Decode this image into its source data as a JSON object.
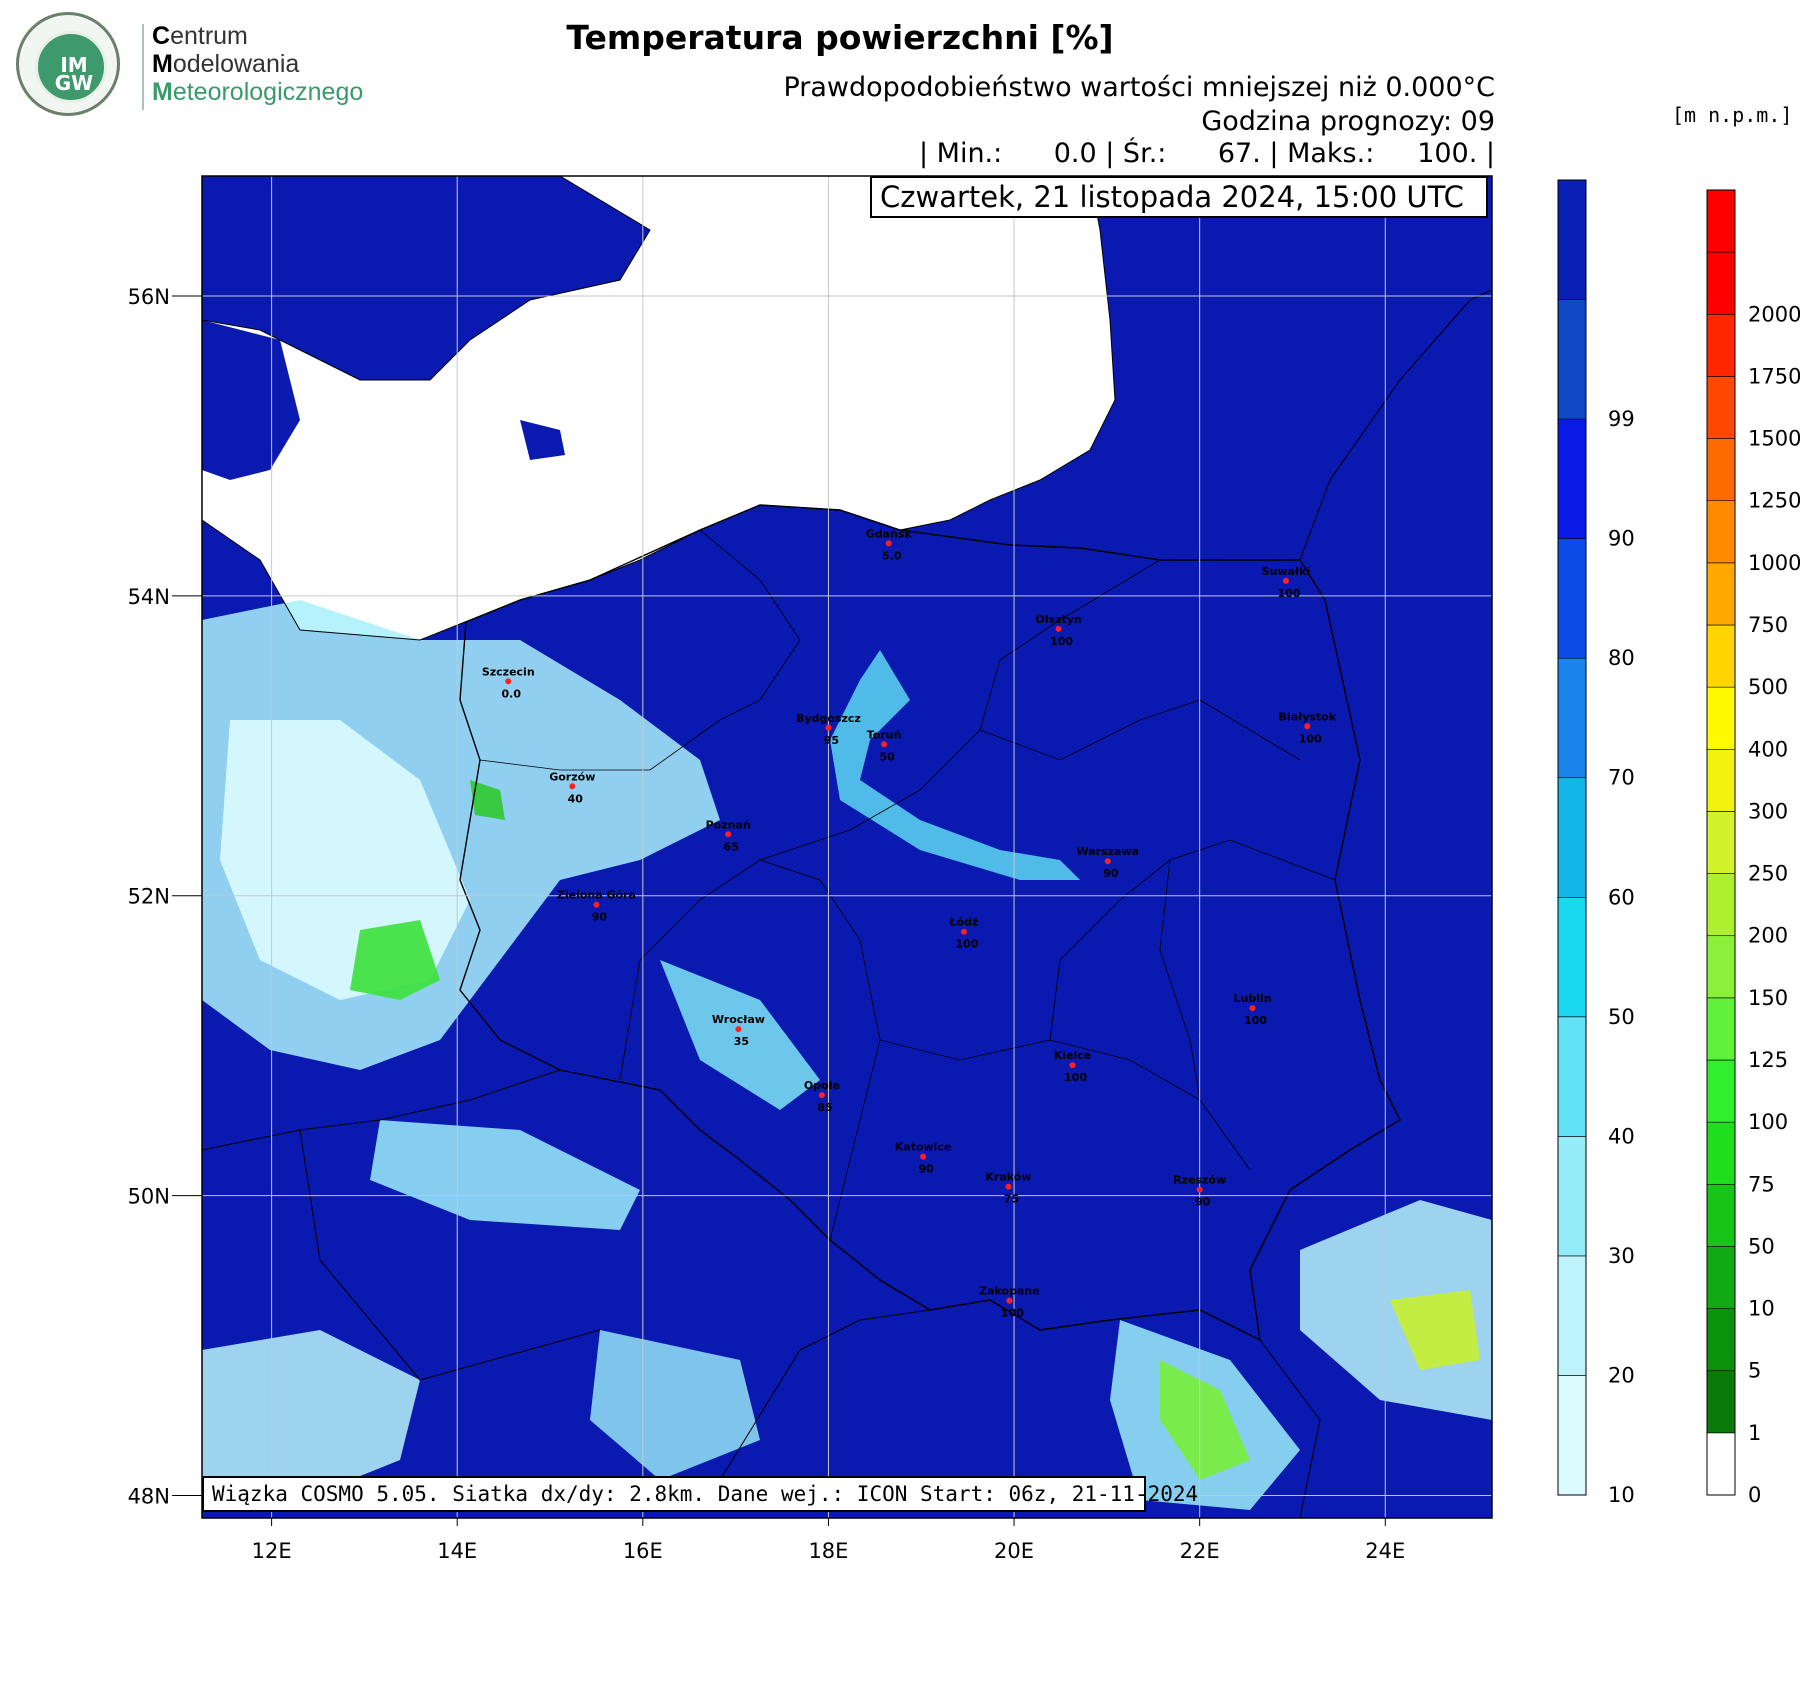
{
  "logo": {
    "badge_text": "IM GW",
    "line1_initial": "C",
    "line1_rest": "entrum",
    "line2_initial": "M",
    "line2_rest": "odelowania",
    "line3_initial": "M",
    "line3_rest": "eteorologicznego"
  },
  "header": {
    "title": "Temperatura powierzchni [%]",
    "subtitle": "Prawdopodobieństwo wartości mniejszej niż 0.000°C",
    "forecast_hour": "Godzina prognozy: 09",
    "stats": "| Min.:      0.0 | Śr.:      67. | Maks.:     100. |"
  },
  "date_box": "Czwartek, 21 listopada 2024, 15:00 UTC",
  "footer": "Wiązka COSMO 5.05. Siatka dx/dy: 2.8km. Dane wej.: ICON Start: 06z, 21-11-2024",
  "elevation_unit": "[m n.p.m.]",
  "axes": {
    "lat_labels": [
      "56N",
      "54N",
      "52N",
      "50N",
      "48N"
    ],
    "lat_values": [
      56,
      54,
      52,
      50,
      48
    ],
    "lon_labels": [
      "12E",
      "14E",
      "16E",
      "18E",
      "20E",
      "22E",
      "24E"
    ],
    "lon_values": [
      12,
      14,
      16,
      18,
      20,
      22,
      24
    ],
    "lon_range": [
      11.25,
      25.15
    ],
    "lat_range": [
      47.85,
      56.8
    ]
  },
  "probability_colorbar": {
    "labels": [
      "10",
      "20",
      "30",
      "40",
      "50",
      "60",
      "70",
      "80",
      "90",
      "99"
    ],
    "colors": [
      "#ddfbff",
      "#bdf4fc",
      "#94ecf9",
      "#62e2f7",
      "#1ad8ef",
      "#14b6ea",
      "#1a84ec",
      "#0e4ce8",
      "#0a1be8",
      "#0f47c5",
      "#0a20b4"
    ]
  },
  "elevation_colorbar": {
    "labels": [
      "0",
      "1",
      "5",
      "10",
      "50",
      "75",
      "100",
      "125",
      "150",
      "200",
      "250",
      "300",
      "400",
      "500",
      "750",
      "1000",
      "1250",
      "1500",
      "1750",
      "2000"
    ],
    "colors": [
      "#ffffff",
      "#0a7a0a",
      "#0a920a",
      "#12aa12",
      "#18c418",
      "#1ede1e",
      "#2ef02e",
      "#60f23a",
      "#8cf03a",
      "#aef030",
      "#d2f22a",
      "#f2f20e",
      "#fffa00",
      "#ffd500",
      "#ffa800",
      "#ff8a00",
      "#ff6a00",
      "#ff4800",
      "#ff2600",
      "#ff0000",
      "#ff0000"
    ]
  },
  "cities": [
    {
      "name": "Gdańsk",
      "value": "5.0",
      "lon": 18.65,
      "lat": 54.35
    },
    {
      "name": "Suwałki",
      "value": "100",
      "lon": 22.93,
      "lat": 54.1
    },
    {
      "name": "Olsztyn",
      "value": "100",
      "lon": 20.48,
      "lat": 53.78
    },
    {
      "name": "Szczecin",
      "value": "0.0",
      "lon": 14.55,
      "lat": 53.43
    },
    {
      "name": "Bydgoszcz",
      "value": "95",
      "lon": 18.0,
      "lat": 53.12
    },
    {
      "name": "Toruń",
      "value": "50",
      "lon": 18.6,
      "lat": 53.01
    },
    {
      "name": "Białystok",
      "value": "100",
      "lon": 23.16,
      "lat": 53.13
    },
    {
      "name": "Gorzów",
      "value": "40",
      "lon": 15.24,
      "lat": 52.73
    },
    {
      "name": "Poznań",
      "value": "65",
      "lon": 16.92,
      "lat": 52.41
    },
    {
      "name": "Warszawa",
      "value": "90",
      "lon": 21.01,
      "lat": 52.23
    },
    {
      "name": "Zielona Góra",
      "value": "90",
      "lon": 15.5,
      "lat": 51.94
    },
    {
      "name": "Łódź",
      "value": "100",
      "lon": 19.46,
      "lat": 51.76
    },
    {
      "name": "Lublin",
      "value": "100",
      "lon": 22.57,
      "lat": 51.25
    },
    {
      "name": "Wrocław",
      "value": "35",
      "lon": 17.03,
      "lat": 51.11
    },
    {
      "name": "Kielce",
      "value": "100",
      "lon": 20.63,
      "lat": 50.87
    },
    {
      "name": "Opole",
      "value": "85",
      "lon": 17.93,
      "lat": 50.67
    },
    {
      "name": "Katowice",
      "value": "90",
      "lon": 19.02,
      "lat": 50.26
    },
    {
      "name": "Kraków",
      "value": "75",
      "lon": 19.94,
      "lat": 50.06
    },
    {
      "name": "Rzeszów",
      "value": "90",
      "lon": 22.0,
      "lat": 50.04
    },
    {
      "name": "Zakopane",
      "value": "100",
      "lon": 19.95,
      "lat": 49.3
    }
  ]
}
